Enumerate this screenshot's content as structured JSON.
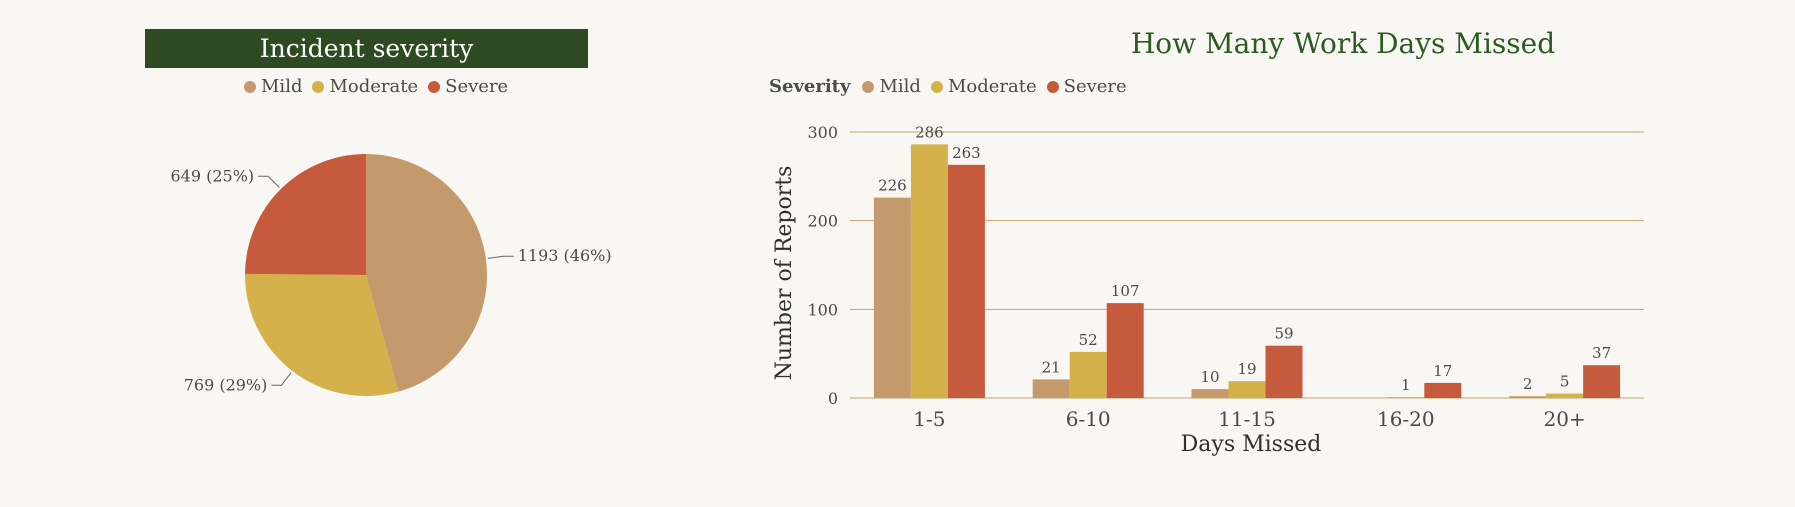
{
  "chart_data": [
    {
      "type": "pie",
      "title": "Incident severity",
      "legend_position": "top",
      "slices": [
        {
          "label": "Mild",
          "value": 1193,
          "percent": 46,
          "display": "1193 (46%)"
        },
        {
          "label": "Moderate",
          "value": 769,
          "percent": 29,
          "display": "769 (29%)"
        },
        {
          "label": "Severe",
          "value": 649,
          "percent": 25,
          "display": "649 (25%)"
        }
      ]
    },
    {
      "type": "bar",
      "title": "How Many Work Days Missed",
      "xlabel": "Days Missed",
      "ylabel": "Number of Reports",
      "legend_title": "Severity",
      "legend_position": "top-left",
      "grid": true,
      "ylim": [
        0,
        300
      ],
      "yticks": [
        0,
        100,
        200,
        300
      ],
      "categories": [
        "1-5",
        "6-10",
        "11-15",
        "16-20",
        "20+"
      ],
      "series": [
        {
          "name": "Mild",
          "values": [
            226,
            21,
            10,
            0,
            2
          ],
          "labels": [
            "226",
            "21",
            "10",
            "",
            "2"
          ]
        },
        {
          "name": "Moderate",
          "values": [
            286,
            52,
            19,
            1,
            5
          ],
          "labels": [
            "286",
            "52",
            "19",
            "1",
            "5"
          ]
        },
        {
          "name": "Severe",
          "values": [
            263,
            107,
            59,
            17,
            37
          ],
          "labels": [
            "263",
            "107",
            "59",
            "17",
            "37"
          ]
        }
      ]
    }
  ],
  "colors": {
    "Mild": "#c49a6c",
    "Moderate": "#d4b14a",
    "Severe": "#c65a3c",
    "title_band": "#2d4a22",
    "bar_title": "#2d5a22",
    "gridline": "#c2a46a",
    "background": "#f9f7f3"
  }
}
